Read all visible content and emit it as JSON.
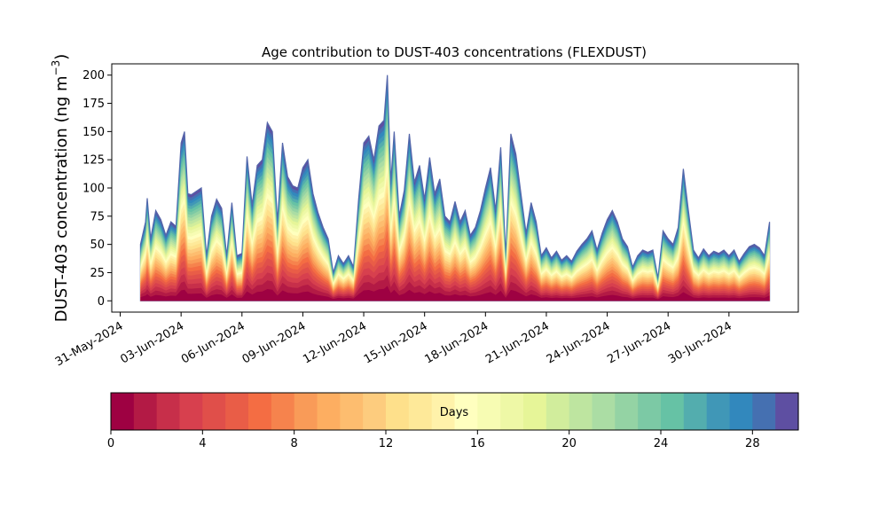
{
  "chart_data": {
    "type": "area",
    "stacked": true,
    "title": "Age contribution to DUST-403 concentrations (FLEXDUST)",
    "ylabel": "DUST-403 concentration (ng m",
    "ylabel_sup": "−3",
    "ylabel_close": ")",
    "xlabel": "",
    "xlim": [
      "2024-05-30T14:00",
      "2024-07-03T10:00"
    ],
    "ylim": [
      -10,
      210
    ],
    "yticks": [
      0,
      25,
      50,
      75,
      100,
      125,
      150,
      175,
      200
    ],
    "xticks": [
      "31-May-2024",
      "03-Jun-2024",
      "06-Jun-2024",
      "09-Jun-2024",
      "12-Jun-2024",
      "15-Jun-2024",
      "18-Jun-2024",
      "21-Jun-2024",
      "24-Jun-2024",
      "27-Jun-2024",
      "30-Jun-2024"
    ],
    "xtick_dates": [
      "2024-05-31",
      "2024-06-03",
      "2024-06-06",
      "2024-06-09",
      "2024-06-12",
      "2024-06-15",
      "2024-06-18",
      "2024-06-21",
      "2024-06-24",
      "2024-06-27",
      "2024-06-30"
    ],
    "grid": false,
    "legend": "none",
    "series_note_colormap": "Spectral",
    "time_series": [
      [
        "2024-06-01T00:00",
        50
      ],
      [
        "2024-06-01T06:00",
        70
      ],
      [
        "2024-06-01T08:00",
        91
      ],
      [
        "2024-06-01T12:00",
        55
      ],
      [
        "2024-06-01T18:00",
        80
      ],
      [
        "2024-06-02T00:00",
        72
      ],
      [
        "2024-06-02T06:00",
        58
      ],
      [
        "2024-06-02T12:00",
        70
      ],
      [
        "2024-06-02T18:00",
        66
      ],
      [
        "2024-06-03T00:00",
        140
      ],
      [
        "2024-06-03T04:00",
        150
      ],
      [
        "2024-06-03T08:00",
        95
      ],
      [
        "2024-06-03T12:00",
        94
      ],
      [
        "2024-06-03T18:00",
        97
      ],
      [
        "2024-06-04T00:00",
        100
      ],
      [
        "2024-06-04T06:00",
        40
      ],
      [
        "2024-06-04T12:00",
        75
      ],
      [
        "2024-06-04T18:00",
        90
      ],
      [
        "2024-06-05T00:00",
        82
      ],
      [
        "2024-06-05T06:00",
        40
      ],
      [
        "2024-06-05T12:00",
        87
      ],
      [
        "2024-06-05T18:00",
        40
      ],
      [
        "2024-06-06T00:00",
        42
      ],
      [
        "2024-06-06T06:00",
        128
      ],
      [
        "2024-06-06T12:00",
        85
      ],
      [
        "2024-06-06T18:00",
        120
      ],
      [
        "2024-06-07T00:00",
        125
      ],
      [
        "2024-06-07T06:00",
        158
      ],
      [
        "2024-06-07T12:00",
        150
      ],
      [
        "2024-06-07T18:00",
        70
      ],
      [
        "2024-06-08T00:00",
        140
      ],
      [
        "2024-06-08T06:00",
        110
      ],
      [
        "2024-06-08T12:00",
        102
      ],
      [
        "2024-06-08T18:00",
        100
      ],
      [
        "2024-06-09T00:00",
        118
      ],
      [
        "2024-06-09T06:00",
        125
      ],
      [
        "2024-06-09T12:00",
        95
      ],
      [
        "2024-06-09T18:00",
        78
      ],
      [
        "2024-06-10T00:00",
        65
      ],
      [
        "2024-06-10T06:00",
        55
      ],
      [
        "2024-06-10T12:00",
        25
      ],
      [
        "2024-06-10T18:00",
        40
      ],
      [
        "2024-06-11T00:00",
        33
      ],
      [
        "2024-06-11T06:00",
        40
      ],
      [
        "2024-06-11T12:00",
        30
      ],
      [
        "2024-06-11T18:00",
        90
      ],
      [
        "2024-06-12T00:00",
        140
      ],
      [
        "2024-06-12T06:00",
        146
      ],
      [
        "2024-06-12T12:00",
        125
      ],
      [
        "2024-06-12T18:00",
        155
      ],
      [
        "2024-06-13T00:00",
        160
      ],
      [
        "2024-06-13T04:00",
        200
      ],
      [
        "2024-06-13T08:00",
        105
      ],
      [
        "2024-06-13T12:00",
        150
      ],
      [
        "2024-06-13T18:00",
        75
      ],
      [
        "2024-06-14T00:00",
        98
      ],
      [
        "2024-06-14T06:00",
        148
      ],
      [
        "2024-06-14T12:00",
        105
      ],
      [
        "2024-06-14T18:00",
        120
      ],
      [
        "2024-06-15T00:00",
        90
      ],
      [
        "2024-06-15T06:00",
        127
      ],
      [
        "2024-06-15T12:00",
        95
      ],
      [
        "2024-06-15T18:00",
        108
      ],
      [
        "2024-06-16T00:00",
        75
      ],
      [
        "2024-06-16T06:00",
        70
      ],
      [
        "2024-06-16T12:00",
        88
      ],
      [
        "2024-06-16T18:00",
        70
      ],
      [
        "2024-06-17T00:00",
        80
      ],
      [
        "2024-06-17T06:00",
        58
      ],
      [
        "2024-06-17T12:00",
        65
      ],
      [
        "2024-06-17T18:00",
        80
      ],
      [
        "2024-06-18T00:00",
        100
      ],
      [
        "2024-06-18T06:00",
        118
      ],
      [
        "2024-06-18T12:00",
        80
      ],
      [
        "2024-06-18T18:00",
        136
      ],
      [
        "2024-06-19T00:00",
        40
      ],
      [
        "2024-06-19T06:00",
        148
      ],
      [
        "2024-06-19T12:00",
        130
      ],
      [
        "2024-06-19T18:00",
        95
      ],
      [
        "2024-06-20T00:00",
        60
      ],
      [
        "2024-06-20T06:00",
        87
      ],
      [
        "2024-06-20T12:00",
        70
      ],
      [
        "2024-06-20T18:00",
        40
      ],
      [
        "2024-06-21T00:00",
        47
      ],
      [
        "2024-06-21T06:00",
        38
      ],
      [
        "2024-06-21T12:00",
        44
      ],
      [
        "2024-06-21T18:00",
        36
      ],
      [
        "2024-06-22T00:00",
        40
      ],
      [
        "2024-06-22T06:00",
        35
      ],
      [
        "2024-06-22T12:00",
        44
      ],
      [
        "2024-06-22T18:00",
        50
      ],
      [
        "2024-06-23T00:00",
        55
      ],
      [
        "2024-06-23T06:00",
        62
      ],
      [
        "2024-06-23T12:00",
        45
      ],
      [
        "2024-06-23T18:00",
        60
      ],
      [
        "2024-06-24T00:00",
        72
      ],
      [
        "2024-06-24T06:00",
        80
      ],
      [
        "2024-06-24T12:00",
        70
      ],
      [
        "2024-06-24T18:00",
        55
      ],
      [
        "2024-06-25T00:00",
        48
      ],
      [
        "2024-06-25T06:00",
        30
      ],
      [
        "2024-06-25T12:00",
        40
      ],
      [
        "2024-06-25T18:00",
        45
      ],
      [
        "2024-06-26T00:00",
        43
      ],
      [
        "2024-06-26T06:00",
        45
      ],
      [
        "2024-06-26T12:00",
        20
      ],
      [
        "2024-06-26T18:00",
        62
      ],
      [
        "2024-06-27T00:00",
        55
      ],
      [
        "2024-06-27T06:00",
        50
      ],
      [
        "2024-06-27T12:00",
        65
      ],
      [
        "2024-06-27T18:00",
        117
      ],
      [
        "2024-06-28T00:00",
        80
      ],
      [
        "2024-06-28T06:00",
        45
      ],
      [
        "2024-06-28T12:00",
        38
      ],
      [
        "2024-06-28T18:00",
        46
      ],
      [
        "2024-06-29T00:00",
        40
      ],
      [
        "2024-06-29T06:00",
        44
      ],
      [
        "2024-06-29T12:00",
        42
      ],
      [
        "2024-06-29T18:00",
        45
      ],
      [
        "2024-06-30T00:00",
        40
      ],
      [
        "2024-06-30T06:00",
        45
      ],
      [
        "2024-06-30T12:00",
        35
      ],
      [
        "2024-06-30T18:00",
        42
      ],
      [
        "2024-07-01T00:00",
        48
      ],
      [
        "2024-07-01T06:00",
        50
      ],
      [
        "2024-07-01T12:00",
        47
      ],
      [
        "2024-07-01T18:00",
        40
      ],
      [
        "2024-07-02T00:00",
        70
      ]
    ]
  },
  "colorbar": {
    "label": "Days",
    "ticks": [
      "0",
      "4",
      "8",
      "12",
      "16",
      "20",
      "24",
      "28"
    ],
    "tick_values": [
      0,
      4,
      8,
      12,
      16,
      20,
      24,
      28
    ],
    "range": [
      0,
      30
    ],
    "levels": 30,
    "colors": [
      "#9e0142",
      "#b31a45",
      "#c72f4a",
      "#d7404e",
      "#e04f4a",
      "#e95d47",
      "#f46d43",
      "#f6834d",
      "#f99b58",
      "#fdae61",
      "#fdbd6f",
      "#fdcc7e",
      "#fee08b",
      "#fee999",
      "#fff2aa",
      "#ffffbf",
      "#f7fcb3",
      "#eef8a6",
      "#e6f598",
      "#d1ed9c",
      "#bee5a0",
      "#abdda4",
      "#94d3a4",
      "#7cc9a5",
      "#66c2a5",
      "#53adae",
      "#4097b7",
      "#3288bd",
      "#4570b1",
      "#5e4fa2"
    ]
  }
}
